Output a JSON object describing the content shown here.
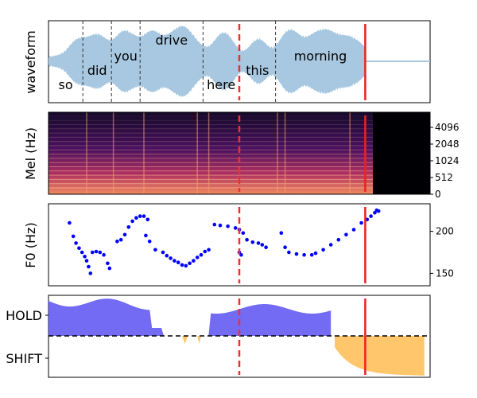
{
  "colors": {
    "waveform": "#a7c8e0",
    "f0_points": "#0000ff",
    "hold_fill": "#6b63f2",
    "shift_fill": "#ffc66b",
    "cursor_dashed": "#f03030",
    "cursor_solid": "#ee2020",
    "boundary": "#333333"
  },
  "chart_data": [
    {
      "type": "area",
      "ylabel": "waveform",
      "words": [
        {
          "text": "so",
          "end_frac": 0.09
        },
        {
          "text": "did",
          "end_frac": 0.165
        },
        {
          "text": "you",
          "end_frac": 0.24
        },
        {
          "text": "drive",
          "end_frac": 0.405
        },
        {
          "text": "here",
          "end_frac": 0.5
        },
        {
          "text": "this",
          "end_frac": 0.595
        },
        {
          "text": "morning",
          "end_frac": 0.83
        }
      ],
      "cursor_dashed_frac": 0.5,
      "cursor_solid_frac": 0.83,
      "speech_end_frac": 0.83
    },
    {
      "type": "heatmap",
      "ylabel": "Mel (Hz)",
      "y_ticks": [
        "0",
        "512",
        "1024",
        "2048",
        "4096"
      ],
      "speech_end_frac": 0.85,
      "cursor_dashed_frac": 0.5,
      "cursor_solid_frac": 0.83
    },
    {
      "type": "scatter",
      "ylabel": "F0 (Hz)",
      "y_ticks": [
        150,
        200
      ],
      "ylim": [
        140,
        228
      ],
      "segments": [
        [
          [
            0.055,
            210
          ],
          [
            0.065,
            194
          ],
          [
            0.072,
            186
          ],
          [
            0.08,
            180
          ],
          [
            0.088,
            175
          ],
          [
            0.095,
            170
          ],
          [
            0.1,
            165
          ],
          [
            0.105,
            158
          ],
          [
            0.11,
            150
          ]
        ],
        [
          [
            0.115,
            175
          ],
          [
            0.125,
            176
          ],
          [
            0.135,
            175
          ],
          [
            0.145,
            172
          ],
          [
            0.155,
            162
          ],
          [
            0.16,
            156
          ]
        ],
        [
          [
            0.18,
            188
          ],
          [
            0.19,
            190
          ],
          [
            0.2,
            196
          ],
          [
            0.21,
            205
          ],
          [
            0.22,
            212
          ],
          [
            0.23,
            216
          ],
          [
            0.24,
            218
          ],
          [
            0.25,
            218
          ],
          [
            0.26,
            214
          ]
        ],
        [
          [
            0.255,
            195
          ],
          [
            0.265,
            188
          ],
          [
            0.28,
            178
          ],
          [
            0.3,
            175
          ],
          [
            0.31,
            171
          ],
          [
            0.32,
            168
          ],
          [
            0.33,
            165
          ],
          [
            0.34,
            163
          ],
          [
            0.35,
            160
          ],
          [
            0.36,
            159
          ],
          [
            0.37,
            162
          ],
          [
            0.38,
            165
          ],
          [
            0.39,
            169
          ],
          [
            0.4,
            172
          ],
          [
            0.41,
            176
          ],
          [
            0.42,
            178
          ]
        ],
        [
          [
            0.435,
            208
          ],
          [
            0.45,
            207
          ],
          [
            0.47,
            206
          ],
          [
            0.49,
            204
          ],
          [
            0.5,
            202
          ],
          [
            0.51,
            198
          ]
        ],
        [
          [
            0.5,
            175
          ],
          [
            0.505,
            172
          ]
        ],
        [
          [
            0.52,
            190
          ],
          [
            0.535,
            187
          ],
          [
            0.55,
            186
          ],
          [
            0.56,
            184
          ],
          [
            0.57,
            181
          ]
        ],
        [
          [
            0.61,
            198
          ],
          [
            0.62,
            181
          ],
          [
            0.63,
            175
          ],
          [
            0.65,
            173
          ],
          [
            0.67,
            172
          ],
          [
            0.69,
            172
          ],
          [
            0.7,
            174
          ],
          [
            0.72,
            178
          ],
          [
            0.74,
            184
          ],
          [
            0.76,
            190
          ],
          [
            0.78,
            196
          ],
          [
            0.8,
            202
          ],
          [
            0.82,
            210
          ],
          [
            0.835,
            214
          ],
          [
            0.845,
            218
          ],
          [
            0.855,
            222
          ],
          [
            0.86,
            225
          ],
          [
            0.865,
            224
          ]
        ]
      ],
      "cursor_dashed_frac": 0.5,
      "cursor_solid_frac": 0.83
    },
    {
      "type": "area",
      "y_ticks": [
        "HOLD",
        "SHIFT"
      ],
      "hold_speech_end_frac": 0.74,
      "cursor_dashed_frac": 0.5,
      "cursor_solid_frac": 0.83
    }
  ]
}
